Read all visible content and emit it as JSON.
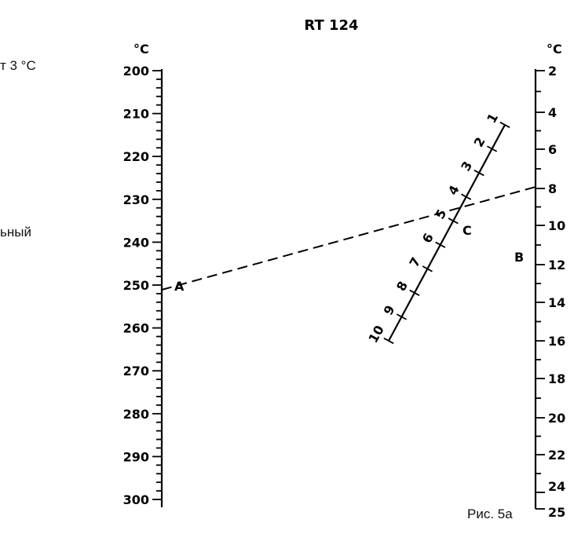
{
  "left_fragments": [
    "т 3 °C",
    "ьный"
  ],
  "caption": "Рис. 5а",
  "diagram": {
    "title": "RT 124",
    "left_scale": {
      "unit": "°C",
      "labels": [
        "200",
        "210",
        "220",
        "230",
        "240",
        "250",
        "260",
        "270",
        "280",
        "290",
        "300"
      ],
      "range": [
        200,
        300
      ],
      "point_label": "A"
    },
    "right_scale": {
      "unit": "°C",
      "labels": [
        "2",
        "4",
        "6",
        "8",
        "10",
        "12",
        "14",
        "16",
        "18",
        "20",
        "22",
        "24",
        "25"
      ],
      "values": [
        2,
        4,
        6,
        8,
        10,
        12,
        14,
        16,
        18,
        20,
        22,
        24,
        25
      ],
      "point_label": "B"
    },
    "middle_scale": {
      "labels": [
        "1",
        "2",
        "3",
        "4",
        "5",
        "6",
        "7",
        "8",
        "9",
        "10"
      ],
      "values": [
        1,
        2,
        3,
        4,
        5,
        6,
        7,
        8,
        9,
        10
      ],
      "point_label": "C"
    },
    "construction_line": {
      "left_value": 250,
      "right_value": 8
    }
  }
}
